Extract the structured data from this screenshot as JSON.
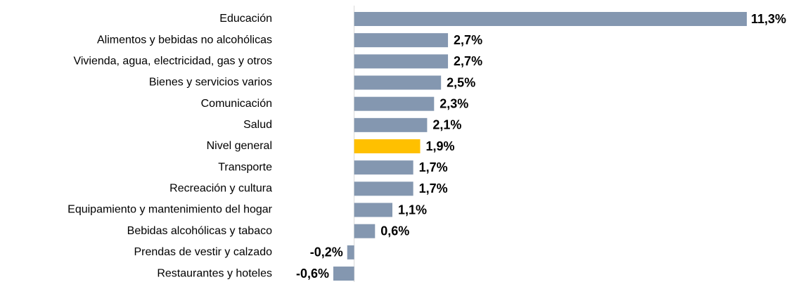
{
  "chart_data": {
    "type": "hbar",
    "categories": [
      "Educación",
      "Alimentos y bebidas no alcohólicas",
      "Vivienda, agua, electricidad, gas y otros",
      "Bienes y servicios varios",
      "Comunicación",
      "Salud",
      "Nivel general",
      "Transporte",
      "Recreación y cultura",
      "Equipamiento y mantenimiento del hogar",
      "Bebidas alcohólicas y tabaco",
      "Prendas de vestir y calzado",
      "Restaurantes y hoteles"
    ],
    "values": [
      11.3,
      2.7,
      2.7,
      2.5,
      2.3,
      2.1,
      1.9,
      1.7,
      1.7,
      1.1,
      0.6,
      -0.2,
      -0.6
    ],
    "value_labels": [
      "11,3%",
      "2,7%",
      "2,7%",
      "2,5%",
      "2,3%",
      "2,1%",
      "1,9%",
      "1,7%",
      "1,7%",
      "1,1%",
      "0,6%",
      "-0,2%",
      "-0,6%"
    ],
    "colors": [
      "#8497b0",
      "#8497b0",
      "#8497b0",
      "#8497b0",
      "#8497b0",
      "#8497b0",
      "#ffc000",
      "#8497b0",
      "#8497b0",
      "#8497b0",
      "#8497b0",
      "#8497b0",
      "#8497b0"
    ]
  }
}
